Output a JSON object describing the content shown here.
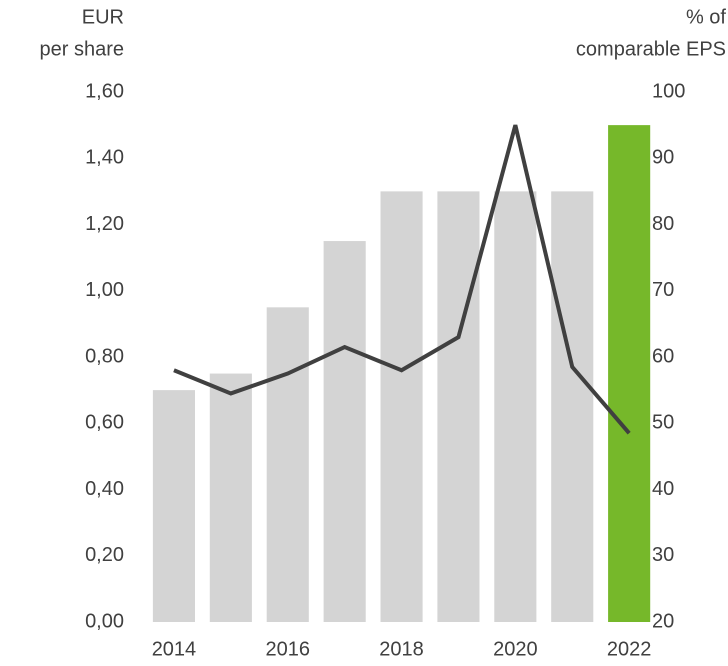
{
  "chart_data": {
    "type": "bar-line",
    "ylabel": [
      "EUR",
      "per share"
    ],
    "y2label": [
      "% of",
      "comparable EPS"
    ],
    "categories": [
      "2014",
      null,
      "2016",
      null,
      "2018",
      null,
      "2020",
      null,
      "2022"
    ],
    "series": [
      {
        "type": "bar",
        "colors": [
          "#d4d4d4",
          "#d4d4d4",
          "#d4d4d4",
          "#d4d4d4",
          "#d4d4d4",
          "#d4d4d4",
          "#d4d4d4",
          "#d4d4d4",
          "#76b82a"
        ],
        "values": [
          0.7,
          0.75,
          0.95,
          1.15,
          1.3,
          1.3,
          1.3,
          1.3,
          1.5
        ]
      },
      {
        "type": "line",
        "axis": "y2",
        "color": "#404040",
        "values": [
          58,
          54.5,
          57.5,
          61.5,
          58,
          63,
          95,
          58.5,
          48.5
        ]
      }
    ],
    "ylim": [
      0,
      1.6
    ],
    "yticks": [
      {
        "value": 0,
        "label": "0,00"
      },
      {
        "value": 0.2,
        "label": "0,20"
      },
      {
        "value": 0.4,
        "label": "0,40"
      },
      {
        "value": 0.6,
        "label": "0,60"
      },
      {
        "value": 0.8,
        "label": "0,80"
      },
      {
        "value": 1.0,
        "label": "1,00"
      },
      {
        "value": 1.2,
        "label": "1,20"
      },
      {
        "value": 1.4,
        "label": "1,40"
      },
      {
        "value": 1.6,
        "label": "1,60"
      }
    ],
    "y2lim": [
      20,
      100
    ],
    "y2ticks": [
      20,
      30,
      40,
      50,
      60,
      70,
      80,
      90,
      100
    ]
  }
}
